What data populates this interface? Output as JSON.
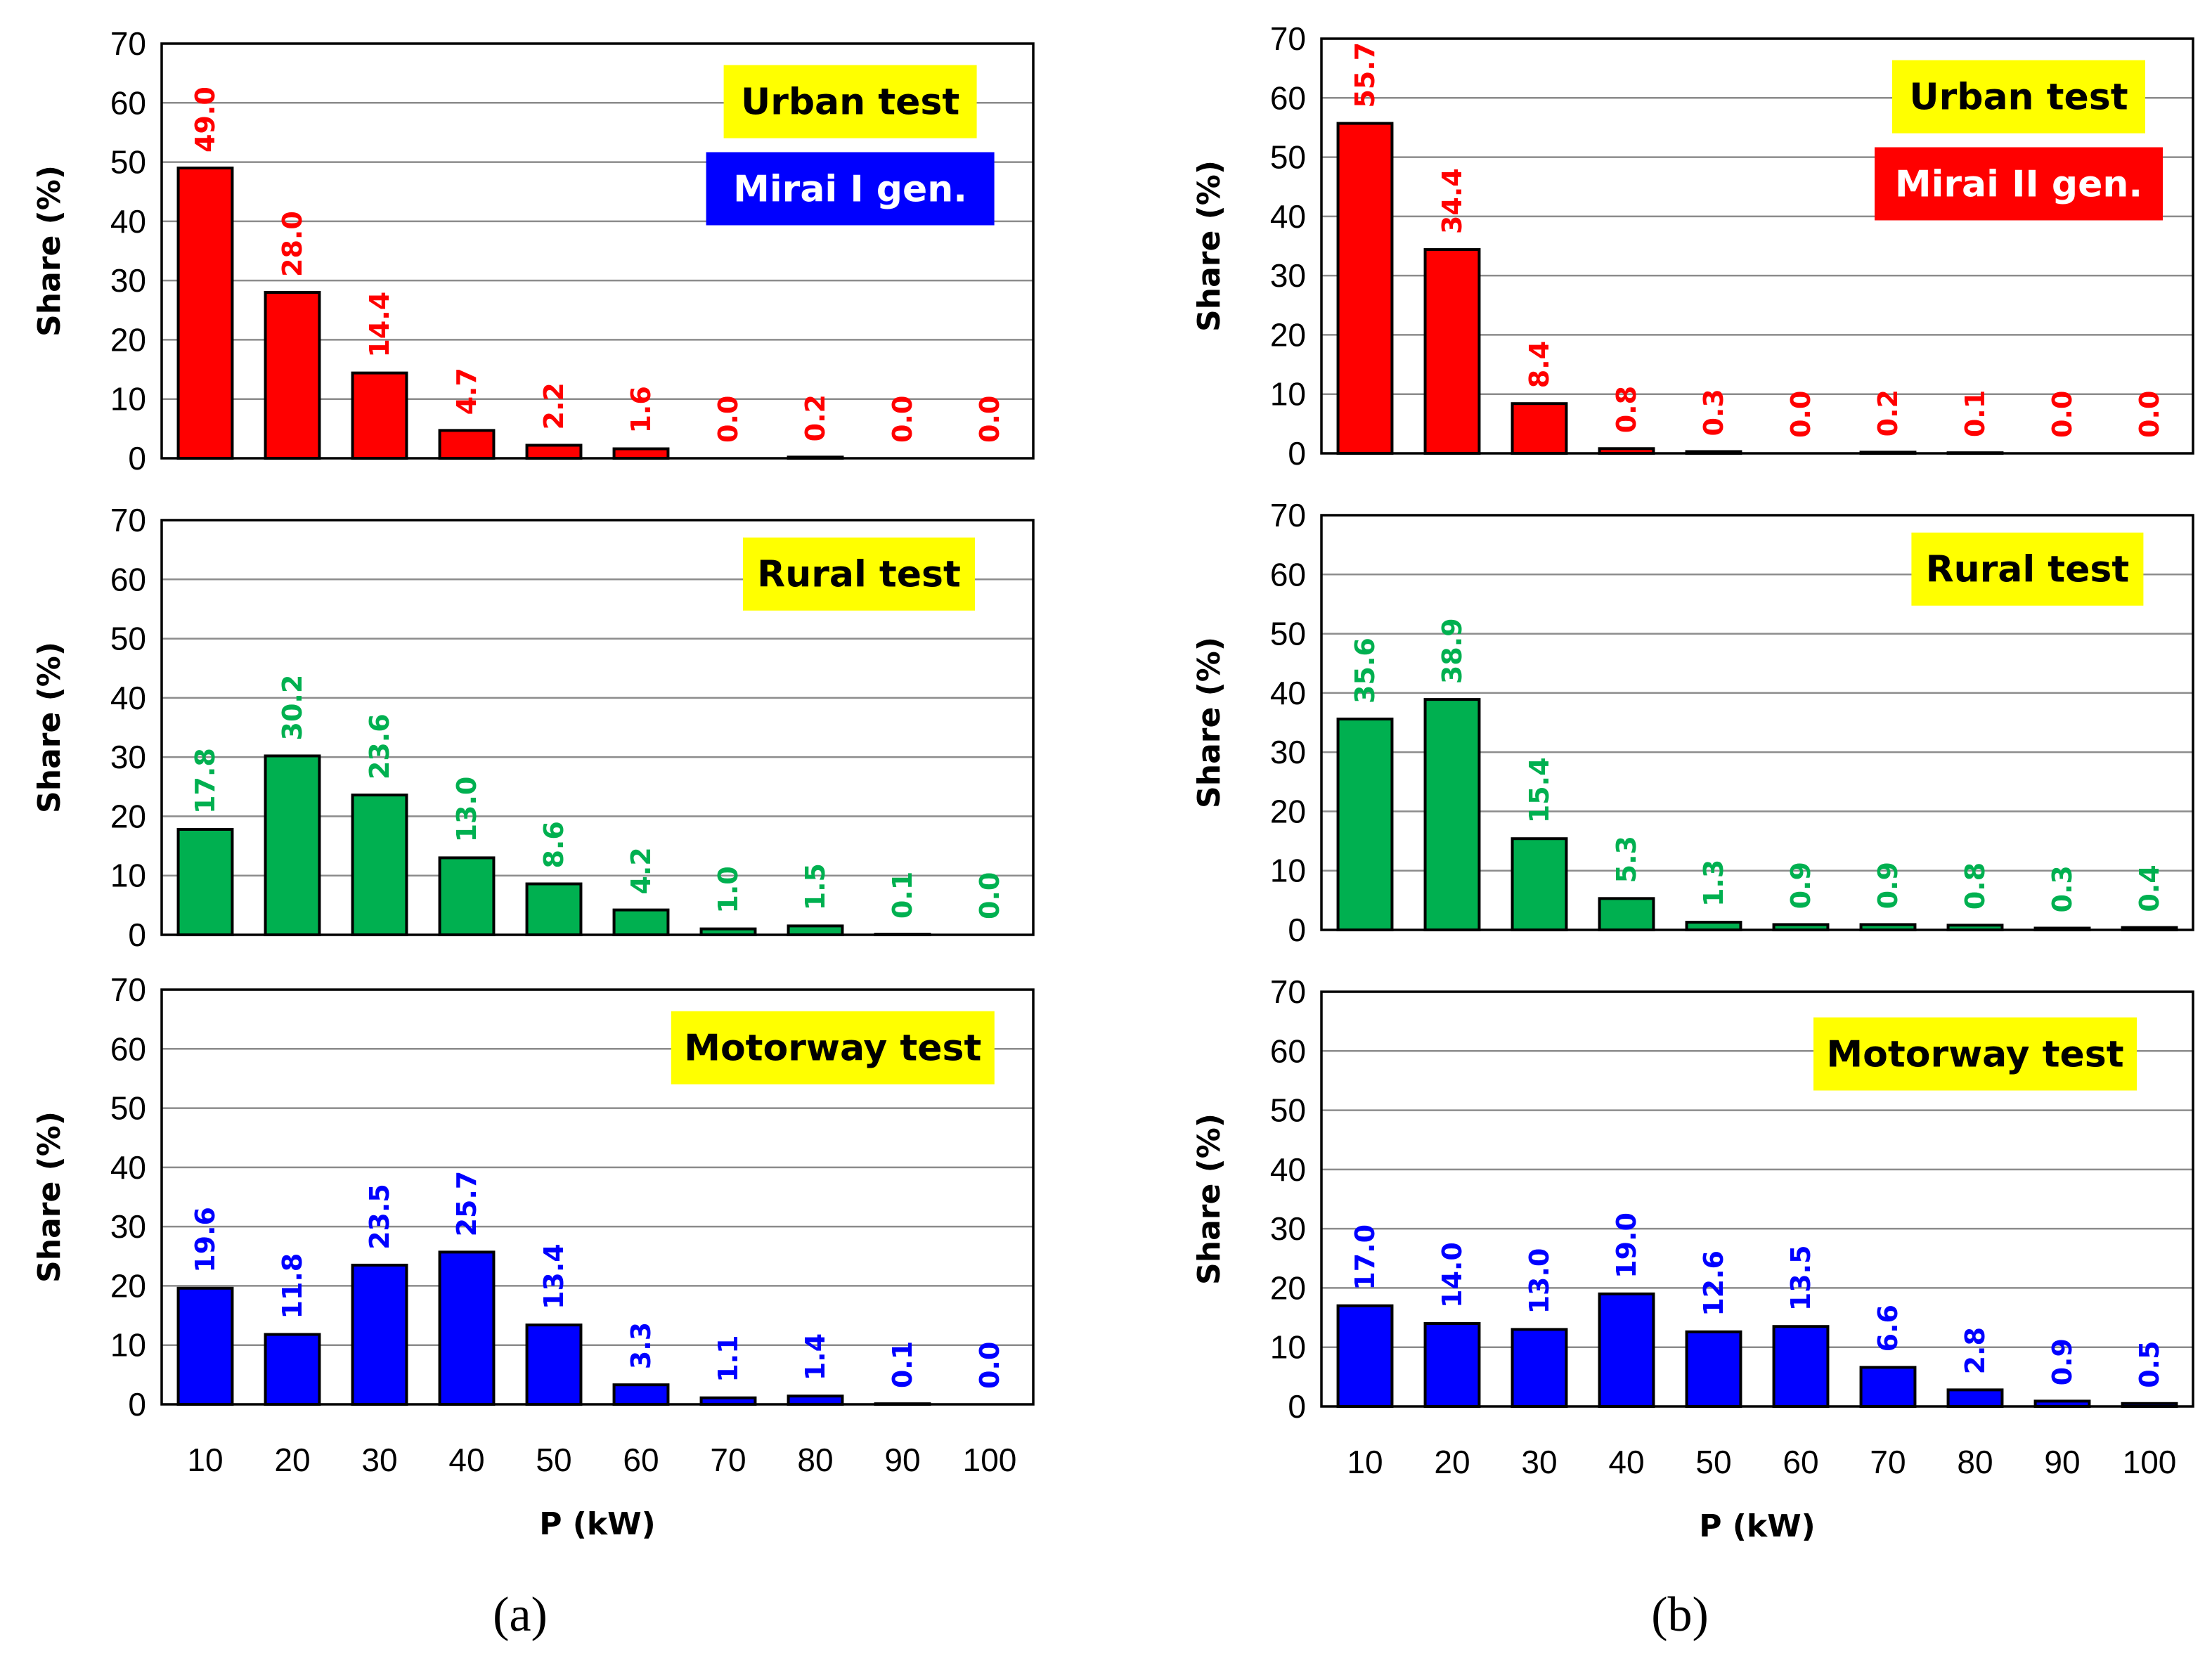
{
  "chart_data": [
    {
      "type": "bar",
      "panel": "a",
      "title": "Urban test",
      "subtitle": "Mirai I gen.",
      "categories": [
        "10",
        "20",
        "30",
        "40",
        "50",
        "60",
        "70",
        "80",
        "90",
        "100"
      ],
      "values": [
        49.0,
        28.0,
        14.4,
        4.7,
        2.2,
        1.6,
        0.0,
        0.2,
        0.0,
        0.0
      ],
      "labels": [
        "49.0",
        "28.0",
        "14.4",
        "4.7",
        "2.2",
        "1.6",
        "0.0",
        "0.2",
        "0.0",
        "0.0"
      ],
      "color": "#ff0000",
      "badge_color": "#ffff00",
      "subtitle_color": "#0000ff",
      "ylabel": "Share (%)",
      "xlabel": "",
      "ylim": [
        0,
        70
      ],
      "yticks": [
        "0",
        "10",
        "20",
        "30",
        "40",
        "50",
        "60",
        "70"
      ],
      "grid": true,
      "show_xticks": false
    },
    {
      "type": "bar",
      "panel": "a",
      "title": "Rural test",
      "categories": [
        "10",
        "20",
        "30",
        "40",
        "50",
        "60",
        "70",
        "80",
        "90",
        "100"
      ],
      "values": [
        17.8,
        30.2,
        23.6,
        13.0,
        8.6,
        4.2,
        1.0,
        1.5,
        0.1,
        0.0
      ],
      "labels": [
        "17.8",
        "30.2",
        "23.6",
        "13.0",
        "8.6",
        "4.2",
        "1.0",
        "1.5",
        "0.1",
        "0.0"
      ],
      "color": "#00b050",
      "badge_color": "#ffff00",
      "ylabel": "Share (%)",
      "xlabel": "",
      "ylim": [
        0,
        70
      ],
      "yticks": [
        "0",
        "10",
        "20",
        "30",
        "40",
        "50",
        "60",
        "70"
      ],
      "grid": true,
      "show_xticks": false
    },
    {
      "type": "bar",
      "panel": "a",
      "title": "Motorway test",
      "categories": [
        "10",
        "20",
        "30",
        "40",
        "50",
        "60",
        "70",
        "80",
        "90",
        "100"
      ],
      "values": [
        19.6,
        11.8,
        23.5,
        25.7,
        13.4,
        3.3,
        1.1,
        1.4,
        0.1,
        0.0
      ],
      "labels": [
        "19.6",
        "11.8",
        "23.5",
        "25.7",
        "13.4",
        "3.3",
        "1.1",
        "1.4",
        "0.1",
        "0.0"
      ],
      "color": "#0000ff",
      "badge_color": "#ffff00",
      "ylabel": "Share (%)",
      "xlabel": "P (kW)",
      "ylim": [
        0,
        70
      ],
      "yticks": [
        "0",
        "10",
        "20",
        "30",
        "40",
        "50",
        "60",
        "70"
      ],
      "grid": true,
      "show_xticks": true
    },
    {
      "type": "bar",
      "panel": "b",
      "title": "Urban test",
      "subtitle": "Mirai II gen.",
      "categories": [
        "10",
        "20",
        "30",
        "40",
        "50",
        "60",
        "70",
        "80",
        "90",
        "100"
      ],
      "values": [
        55.7,
        34.4,
        8.4,
        0.8,
        0.3,
        0.0,
        0.2,
        0.1,
        0.0,
        0.0
      ],
      "labels": [
        "55.7",
        "34.4",
        "8.4",
        "0.8",
        "0.3",
        "0.0",
        "0.2",
        "0.1",
        "0.0",
        "0.0"
      ],
      "color": "#ff0000",
      "badge_color": "#ffff00",
      "subtitle_color": "#ff0000",
      "ylabel": "Share (%)",
      "xlabel": "",
      "ylim": [
        0,
        70
      ],
      "yticks": [
        "0",
        "10",
        "20",
        "30",
        "40",
        "50",
        "60",
        "70"
      ],
      "grid": true,
      "show_xticks": false
    },
    {
      "type": "bar",
      "panel": "b",
      "title": "Rural test",
      "categories": [
        "10",
        "20",
        "30",
        "40",
        "50",
        "60",
        "70",
        "80",
        "90",
        "100"
      ],
      "values": [
        35.6,
        38.9,
        15.4,
        5.3,
        1.3,
        0.9,
        0.9,
        0.8,
        0.3,
        0.4
      ],
      "labels": [
        "35.6",
        "38.9",
        "15.4",
        "5.3",
        "1.3",
        "0.9",
        "0.9",
        "0.8",
        "0.3",
        "0.4"
      ],
      "color": "#00b050",
      "badge_color": "#ffff00",
      "ylabel": "Share (%)",
      "xlabel": "",
      "ylim": [
        0,
        70
      ],
      "yticks": [
        "0",
        "10",
        "20",
        "30",
        "40",
        "50",
        "60",
        "70"
      ],
      "grid": true,
      "show_xticks": false
    },
    {
      "type": "bar",
      "panel": "b",
      "title": "Motorway test",
      "categories": [
        "10",
        "20",
        "30",
        "40",
        "50",
        "60",
        "70",
        "80",
        "90",
        "100"
      ],
      "values": [
        17.0,
        14.0,
        13.0,
        19.0,
        12.6,
        13.5,
        6.6,
        2.8,
        0.9,
        0.5
      ],
      "labels": [
        "17.0",
        "14.0",
        "13.0",
        "19.0",
        "12.6",
        "13.5",
        "6.6",
        "2.8",
        "0.9",
        "0.5"
      ],
      "color": "#0000ff",
      "badge_color": "#ffff00",
      "ylabel": "Share (%)",
      "xlabel": "P (kW)",
      "ylim": [
        0,
        70
      ],
      "yticks": [
        "0",
        "10",
        "20",
        "30",
        "40",
        "50",
        "60",
        "70"
      ],
      "grid": true,
      "show_xticks": true
    }
  ],
  "captions": {
    "a": "(a)",
    "b": "(b)"
  }
}
